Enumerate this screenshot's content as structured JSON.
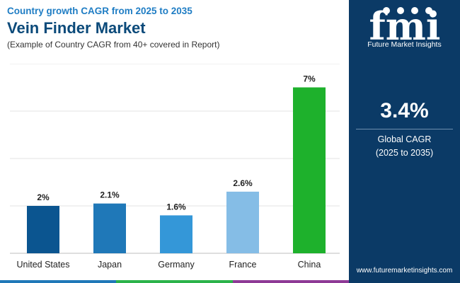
{
  "header": {
    "kicker": "Country growth CAGR from 2025 to 2035",
    "title": "Vein Finder Market",
    "note": "(Example of Country CAGR from 40+ covered in Report)"
  },
  "chart_data": {
    "type": "bar",
    "categories": [
      "United States",
      "Japan",
      "Germany",
      "France",
      "China"
    ],
    "values": [
      2.0,
      2.1,
      1.6,
      2.6,
      7.0
    ],
    "data_labels": [
      "2%",
      "2.1%",
      "1.6%",
      "2.6%",
      "7%"
    ],
    "colors": [
      "#0b5590",
      "#1f78b8",
      "#3497d8",
      "#85bde6",
      "#1eb12c"
    ],
    "ylim": [
      0,
      8
    ],
    "grid": true,
    "legend": "none",
    "title": "",
    "xlabel": "",
    "ylabel": ""
  },
  "sidebar": {
    "logo_text": "fmi",
    "logo_tagline": "Future Market Insights",
    "cagr_value": "3.4%",
    "cagr_label": "Global CAGR",
    "cagr_period": "(2025 to 2035)",
    "website": "www.futuremarketinsights.com",
    "background": "#0b3a66"
  },
  "bottom_bar_colors": [
    "#1f78b8",
    "#2bb34a",
    "#8e3a96"
  ]
}
